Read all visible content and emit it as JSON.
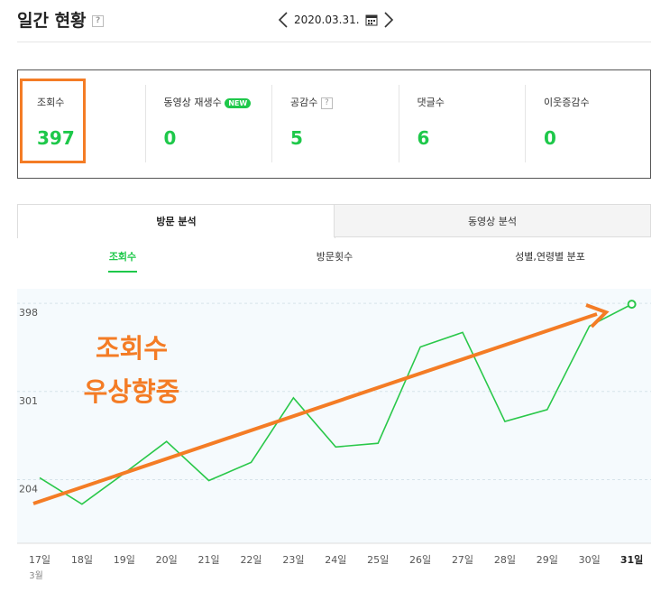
{
  "header": {
    "title": "일간 현황",
    "help": "?",
    "date": "2020.03.31."
  },
  "summary": [
    {
      "label": "조회수",
      "value": "397"
    },
    {
      "label": "동영상 재생수",
      "badge": "NEW",
      "value": "0"
    },
    {
      "label": "공감수",
      "help": "?",
      "value": "5"
    },
    {
      "label": "댓글수",
      "value": "6"
    },
    {
      "label": "이웃증감수",
      "value": "0"
    }
  ],
  "tabs": [
    "방문 분석",
    "동영상 분석"
  ],
  "subtabs": [
    "조회수",
    "방문횟수",
    "성별,연령별 분포"
  ],
  "chart_data": {
    "type": "line",
    "categories": [
      "17일",
      "18일",
      "19일",
      "20일",
      "21일",
      "22일",
      "23일",
      "24일",
      "25일",
      "26일",
      "27일",
      "28일",
      "29일",
      "30일",
      "31일"
    ],
    "x_month_label": "3월",
    "series": [
      {
        "name": "조회수",
        "color": "#2ac84a",
        "values": [
          206,
          177,
          211,
          246,
          203,
          223,
          294,
          240,
          244,
          350,
          366,
          268,
          281,
          373,
          397
        ]
      }
    ],
    "ylim": [
      134,
      414
    ],
    "yticks": [
      204,
      301,
      398
    ],
    "grid": true,
    "annotation": [
      "조회수",
      "우상향중"
    ],
    "annotation_color": "#f47c25"
  }
}
